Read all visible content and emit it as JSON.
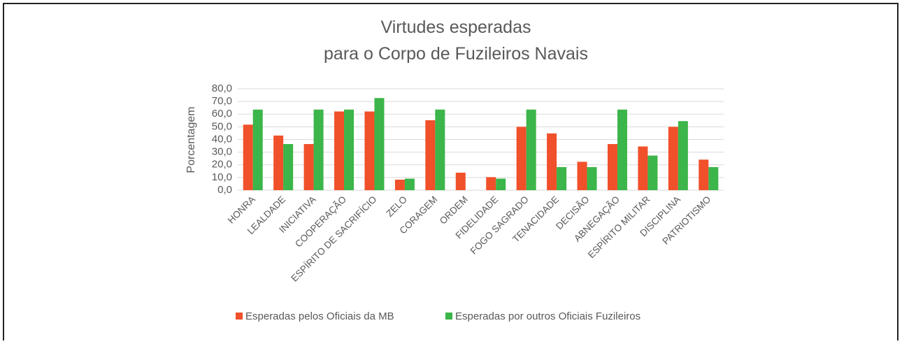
{
  "chart_data": {
    "type": "bar",
    "title": [
      "Virtudes esperadas",
      "para o Corpo de Fuzileiros Navais"
    ],
    "y_label": "Porcentagem",
    "categories": [
      "HONRA",
      "LEALDADE",
      "INICIATIVA",
      "COOPERAÇÃO",
      "ESPÍRITO DE SACRIFÍCIO",
      "ZELO",
      "CORAGEM",
      "ORDEM",
      "FIDELIDADE",
      "FOGO SAGRADO",
      "TENACIDADE",
      "DECISÃO",
      "ABNEGAÇÃO",
      "ESPÍRITO MILITAR",
      "DISCIPLINA",
      "PATRIOTISMO"
    ],
    "series": [
      {
        "name": "Esperadas pelos Oficiais da MB",
        "color": "#f0502a",
        "values": [
          51.7,
          43.1,
          36.4,
          62.1,
          62.1,
          8.3,
          55.2,
          13.8,
          10.3,
          50.0,
          44.8,
          22.4,
          36.4,
          34.5,
          50.0,
          24.1
        ]
      },
      {
        "name": "Esperadas por outros Oficiais Fuzileiros",
        "color": "#3cb54a",
        "values": [
          63.6,
          36.4,
          63.6,
          63.6,
          72.7,
          9.1,
          63.6,
          0,
          9.1,
          63.6,
          18.2,
          18.2,
          63.6,
          27.3,
          54.5,
          18.2
        ]
      }
    ],
    "ylim": [
      0,
      80
    ],
    "yticks": [
      {
        "value": 0,
        "label": "0,0"
      },
      {
        "value": 10,
        "label": "10,0"
      },
      {
        "value": 20,
        "label": "20,0"
      },
      {
        "value": 30,
        "label": "30,0"
      },
      {
        "value": 40,
        "label": "40,0"
      },
      {
        "value": 50,
        "label": "50,0"
      },
      {
        "value": 60,
        "label": "60,0"
      },
      {
        "value": 70,
        "label": "70,0"
      },
      {
        "value": 80,
        "label": "80,0"
      }
    ],
    "grid": true,
    "legend": "bottom"
  }
}
